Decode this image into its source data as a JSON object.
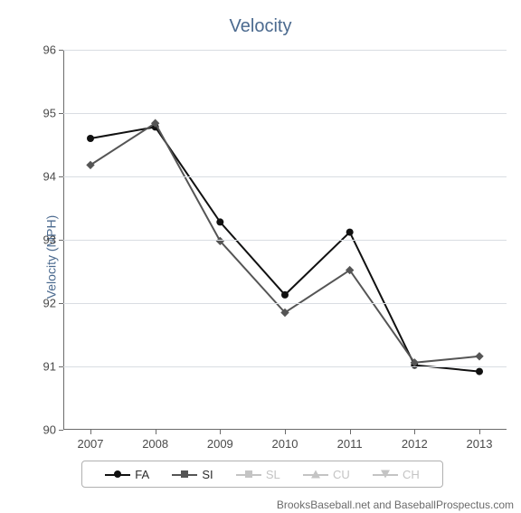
{
  "chart": {
    "type": "line",
    "title": "Velocity",
    "title_color": "#4b6a8f",
    "title_fontsize": 20,
    "ylabel": "Velocity (MPH)",
    "ylabel_color": "#4b6a8f",
    "label_fontsize": 14,
    "tick_fontsize": 13,
    "tick_color": "#4a4a4a",
    "background_color": "#ffffff",
    "grid_color": "#d9dde2",
    "axis_color": "#6b6b6b",
    "line_width": 2,
    "marker_size": 8,
    "ylim": [
      90,
      96
    ],
    "ytick_step": 1,
    "categories": [
      "2007",
      "2008",
      "2009",
      "2010",
      "2011",
      "2012",
      "2013"
    ],
    "series": [
      {
        "name": "FA",
        "color": "#111111",
        "marker": "circle",
        "active": true,
        "values": [
          94.6,
          94.78,
          93.28,
          92.13,
          93.12,
          91.02,
          90.92
        ]
      },
      {
        "name": "SI",
        "color": "#555555",
        "marker": "diamond",
        "active": true,
        "values": [
          94.18,
          94.84,
          92.98,
          91.85,
          92.52,
          91.06,
          91.16
        ]
      },
      {
        "name": "SL",
        "color": "#c4c4c4",
        "marker": "square",
        "active": false,
        "values": null
      },
      {
        "name": "CU",
        "color": "#c4c4c4",
        "marker": "triangle-up",
        "active": false,
        "values": null
      },
      {
        "name": "CH",
        "color": "#c4c4c4",
        "marker": "triangle-down",
        "active": false,
        "values": null
      }
    ],
    "credit": "BrooksBaseball.net and BaseballProspectus.com",
    "credit_color": "#6b6b6b",
    "credit_fontsize": 12
  }
}
